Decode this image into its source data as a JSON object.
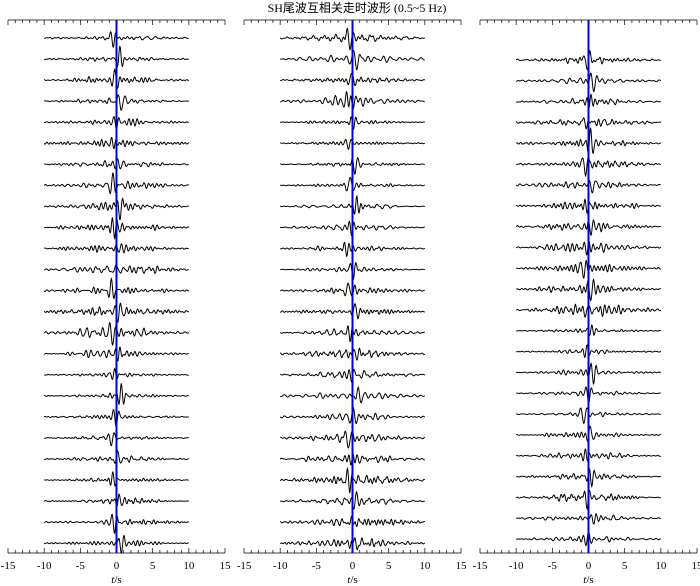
{
  "chart_data": {
    "type": "line",
    "title": "SH尾波互相关走时波形 (0.5~5 Hz)",
    "xlabel": "t/s",
    "xlim": [
      -15,
      15
    ],
    "x_ticks": [
      "-15",
      "-10",
      "-5",
      "0",
      "5",
      "10",
      "15"
    ],
    "trace_window": [
      -10,
      10
    ],
    "reference_time": 0,
    "colors": {
      "traces": "#000000",
      "reference_line": "#0000cc"
    },
    "panels": [
      {
        "traces": 25
      },
      {
        "traces": 25
      },
      {
        "traces": 24
      }
    ]
  }
}
